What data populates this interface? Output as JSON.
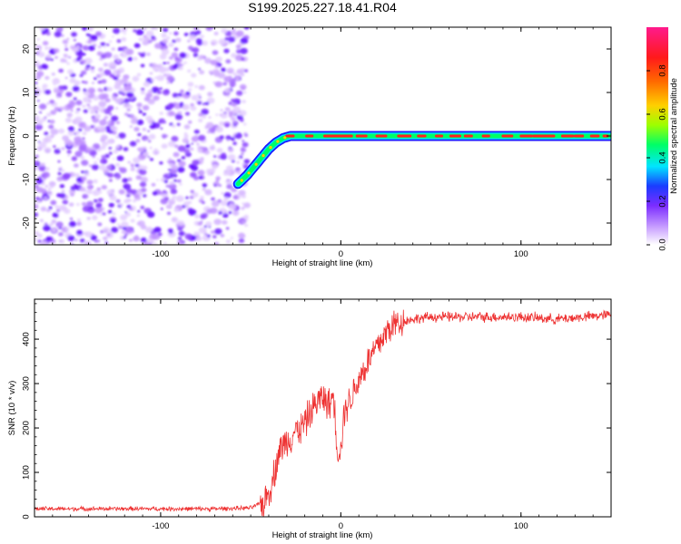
{
  "title": "S199.2025.227.18.41.R04",
  "chart_data": [
    {
      "type": "heatmap",
      "subtitle": "spectrogram",
      "xlabel": "Height of straight line (km)",
      "ylabel": "Frequency (Hz)",
      "xlim": [
        -170,
        150
      ],
      "ylim": [
        -25,
        25
      ],
      "x_ticks": [
        -100,
        0,
        100
      ],
      "y_ticks": [
        -20,
        -10,
        0,
        10,
        20
      ],
      "x_tick_labels": [
        "-100",
        "0",
        "100"
      ],
      "y_tick_labels": [
        "-20",
        "-10",
        "0",
        "10",
        "20"
      ],
      "noise_region_x": [
        -170,
        -52
      ],
      "signal_track": {
        "x": [
          -57,
          -52,
          -48,
          -44,
          -40,
          -36,
          -32,
          -28,
          -20,
          -10,
          0,
          50,
          100,
          150
        ],
        "y": [
          -11,
          -9,
          -7,
          -5,
          -3,
          -1.5,
          -0.5,
          0,
          0,
          0,
          0,
          0,
          0,
          0
        ]
      },
      "colorbar": {
        "label": "Normalized spectral amplitude",
        "range": [
          0,
          1
        ],
        "ticks": [
          0.0,
          0.2,
          0.4,
          0.6,
          0.8
        ],
        "tick_labels": [
          "0.0",
          "0.2",
          "0.4",
          "0.6",
          "0.8"
        ],
        "colors": [
          "#ffffff",
          "#c9a0ff",
          "#7b2cff",
          "#1a3cff",
          "#00e5ff",
          "#00ff66",
          "#9dff00",
          "#ffd000",
          "#ff6a00",
          "#ff1a1a",
          "#ff1a8c"
        ]
      }
    },
    {
      "type": "line",
      "subtitle": "snr",
      "xlabel": "Height of straight line (km)",
      "ylabel": "SNR (10 * v/v)",
      "xlim": [
        -170,
        150
      ],
      "ylim": [
        0,
        490
      ],
      "x_ticks": [
        -100,
        0,
        100
      ],
      "y_ticks": [
        0,
        100,
        200,
        300,
        400
      ],
      "x_tick_labels": [
        "-100",
        "0",
        "100"
      ],
      "y_tick_labels": [
        "0",
        "100",
        "200",
        "300",
        "400"
      ],
      "line_color": "#ee3333",
      "series": [
        {
          "name": "SNR",
          "x": [
            -170,
            -150,
            -130,
            -110,
            -90,
            -70,
            -50,
            -42,
            -38,
            -34,
            -30,
            -26,
            -22,
            -18,
            -14,
            -10,
            -6,
            -4,
            -2,
            0,
            2,
            6,
            10,
            14,
            18,
            22,
            26,
            30,
            40,
            50,
            60,
            80,
            100,
            120,
            150
          ],
          "y": [
            18,
            18,
            18,
            18,
            18,
            18,
            20,
            35,
            80,
            150,
            170,
            190,
            200,
            225,
            255,
            270,
            250,
            280,
            150,
            150,
            240,
            270,
            310,
            340,
            370,
            395,
            420,
            435,
            445,
            450,
            450,
            450,
            450,
            445,
            455
          ]
        }
      ]
    }
  ]
}
